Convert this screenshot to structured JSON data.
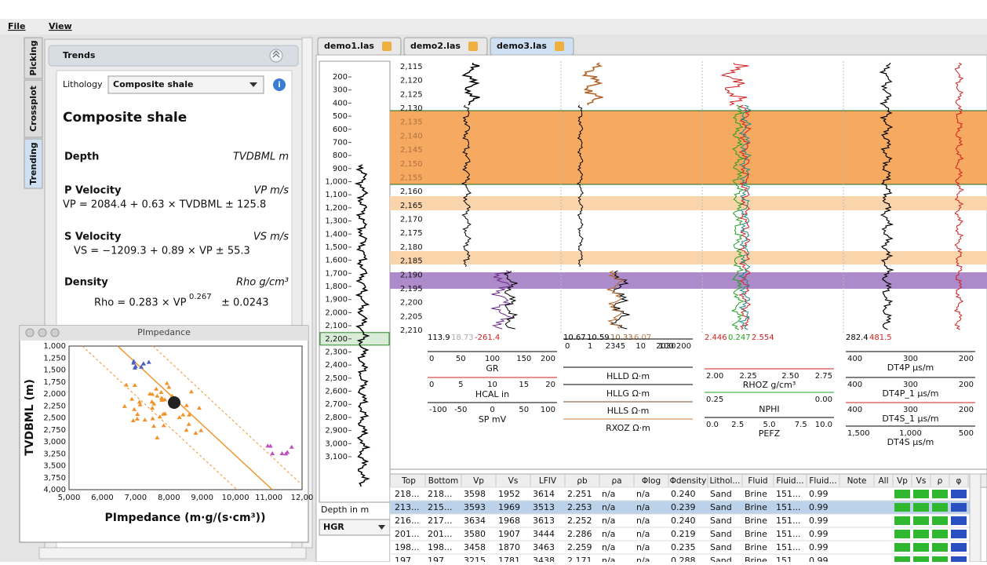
{
  "menu": [
    "File",
    "View"
  ],
  "side_tabs": [
    "Picking",
    "Crossplot",
    "Trending"
  ],
  "trends": {
    "title": "Trends",
    "lithology_label": "Lithology",
    "lithology_value": "Composite shale",
    "heading": "Composite shale",
    "depth": {
      "label": "Depth",
      "unit": "TVDBML m"
    },
    "p_velocity": {
      "label": "P Velocity",
      "unit": "VP m/s",
      "equation": "VP = 2084.4 + 0.63 × TVDBML ± 125.8"
    },
    "s_velocity": {
      "label": "S Velocity",
      "unit": "VS m/s",
      "equation": "VS = −1209.3 + 0.89 × VP ± 55.3"
    },
    "density": {
      "label": "Density",
      "unit": "Rho g/cm³",
      "equation": "Rho = 0.283 × VP",
      "exponent": "0.267",
      "error": "± 0.0243"
    }
  },
  "pimpedance": {
    "title": "PImpedance",
    "y_label": "TVDBML (m)",
    "x_label": "PImpedance (m·g/(s·cm³))",
    "yticks": [
      "1,000",
      "1,250",
      "1,500",
      "1,750",
      "2,000",
      "2,250",
      "2,500",
      "2,750",
      "3,000",
      "3,250",
      "3,500",
      "3,750",
      "4,000"
    ],
    "xticks": [
      "5,000",
      "6,000",
      "7,000",
      "8,000",
      "9,000",
      "10,000",
      "11,000",
      "12,00"
    ]
  },
  "tabs": [
    "demo1.las",
    "demo2.las",
    "demo3.las"
  ],
  "depth_track": {
    "ticks": [
      "200",
      "300",
      "400",
      "500",
      "600",
      "700",
      "800",
      "900",
      "1,000",
      "1,100",
      "1,200",
      "1,300",
      "1,400",
      "1,500",
      "1,600",
      "1,700",
      "1,800",
      "1,900",
      "2,000",
      "2,100",
      "2,200",
      "2,300",
      "2,400",
      "2,500",
      "2,600",
      "2,700",
      "2,800",
      "2,900",
      "3,000",
      "3,100"
    ],
    "unit_label": "Depth in m",
    "curve_select": "HGR"
  },
  "log_depths": [
    "2,115",
    "2,120",
    "2,125",
    "2,130",
    "2,135",
    "2,140",
    "2,145",
    "2,150",
    "2,155",
    "2,160",
    "2,165",
    "2,170",
    "2,175",
    "2,180",
    "2,185",
    "2,190",
    "2,195",
    "2,200",
    "2,205",
    "2,210"
  ],
  "log_tracks": [
    {
      "readouts": [
        {
          "text": "113.9",
          "color": "#000000"
        },
        {
          "text": "18.73",
          "color": "#aaaaaa"
        },
        {
          "text": "-261.4",
          "color": "#d02020"
        }
      ],
      "scales": [
        {
          "ticks": [
            "0",
            "50",
            "100",
            "150",
            "200"
          ],
          "label": "GR",
          "color": "#000000"
        },
        {
          "ticks": [
            "0",
            "5",
            "10",
            "15",
            "20"
          ],
          "label": "HCAL in",
          "color": "#d02020"
        },
        {
          "ticks": [
            "-100",
            "-50",
            "0",
            "50",
            "100"
          ],
          "label": "SP mV",
          "color": "#000000"
        }
      ]
    },
    {
      "readouts": [
        {
          "text": "10.67",
          "color": "#000000"
        },
        {
          "text": "10.59",
          "color": "#000000"
        },
        {
          "text": "10.33",
          "color": "#a0642a"
        },
        {
          "text": "6.07",
          "color": "#c8783c"
        }
      ],
      "scales": [
        {
          "ticks": [
            "0",
            "1",
            "2345",
            "10",
            "2030",
            "100 200"
          ],
          "color": "#000000"
        },
        {
          "label": "HLLD Ω·m",
          "color": "#000000"
        },
        {
          "label": "HLLG Ω·m",
          "color": "#000000"
        },
        {
          "label": "HLLS Ω·m",
          "color": "#7a4a1e"
        },
        {
          "label": "RXOZ Ω·m",
          "color": "#c8783c"
        }
      ]
    },
    {
      "readouts": [
        {
          "text": "2.446",
          "color": "#d02020"
        },
        {
          "text": "0.247",
          "color": "#20a020"
        },
        {
          "text": "2.554",
          "color": "#d02020"
        }
      ],
      "scales": [
        {
          "ticks": [
            "2.00",
            "2.25",
            "2.50",
            "2.75"
          ],
          "label": "RHOZ g/cm³",
          "color": "#d02020"
        },
        {
          "ticks": [
            "0.25",
            "0.00"
          ],
          "label": "NPHI",
          "color": "#20a020"
        },
        {
          "ticks": [
            "0.0",
            "2.5",
            "5.0",
            "7.5",
            "10.0"
          ],
          "label": "PEFZ",
          "color": "#000000"
        }
      ]
    },
    {
      "readouts": [
        {
          "text": "282.4",
          "color": "#000000"
        },
        {
          "text": "481.5",
          "color": "#d02020"
        }
      ],
      "scales": [
        {
          "ticks": [
            "400",
            "300",
            "200"
          ],
          "label": "DT4P μs/m",
          "color": "#000000"
        },
        {
          "ticks": [
            "400",
            "300",
            "200"
          ],
          "label": "DT4P_1 μs/m",
          "color": "#000000"
        },
        {
          "ticks": [
            "400",
            "300",
            "200"
          ],
          "label": "DT4S_1 μs/m",
          "color": "#d02020"
        },
        {
          "ticks": [
            "1,500",
            "1,000",
            "500"
          ],
          "label": "DT4S μs/m",
          "color": "#000000"
        }
      ]
    }
  ],
  "table": {
    "headers": [
      "Top",
      "Bottom",
      "Vp",
      "Vs",
      "LFIV",
      "ρb",
      "ρa",
      "Φlog",
      "Φdensity",
      "Lithol...",
      "Fluid",
      "Fluid...",
      "Fluid...",
      "Note",
      "All",
      "Vp",
      "Vs",
      "ρ",
      "φ"
    ],
    "rows": [
      [
        "218...",
        "218...",
        "3598",
        "1952",
        "3614",
        "2.251",
        "n/a",
        "n/a",
        "0.240",
        "Sand",
        "Brine",
        "151...",
        "0.99"
      ],
      [
        "213...",
        "215...",
        "3593",
        "1969",
        "3513",
        "2.253",
        "n/a",
        "n/a",
        "0.239",
        "Sand",
        "Brine",
        "151...",
        "0.99"
      ],
      [
        "216...",
        "217...",
        "3634",
        "1968",
        "3613",
        "2.252",
        "n/a",
        "n/a",
        "0.240",
        "Sand",
        "Brine",
        "151...",
        "0.99"
      ],
      [
        "201...",
        "201...",
        "3580",
        "1907",
        "3444",
        "2.286",
        "n/a",
        "n/a",
        "0.219",
        "Sand",
        "Brine",
        "151...",
        "0.99"
      ],
      [
        "198...",
        "198...",
        "3458",
        "1870",
        "3463",
        "2.259",
        "n/a",
        "n/a",
        "0.235",
        "Sand",
        "Brine",
        "151...",
        "0.99"
      ],
      [
        "197",
        "197",
        "3215",
        "1781",
        "3438",
        "2.171",
        "n/a",
        "n/a",
        "0.288",
        "Sand",
        "Brine",
        "151",
        "0.99"
      ]
    ]
  }
}
